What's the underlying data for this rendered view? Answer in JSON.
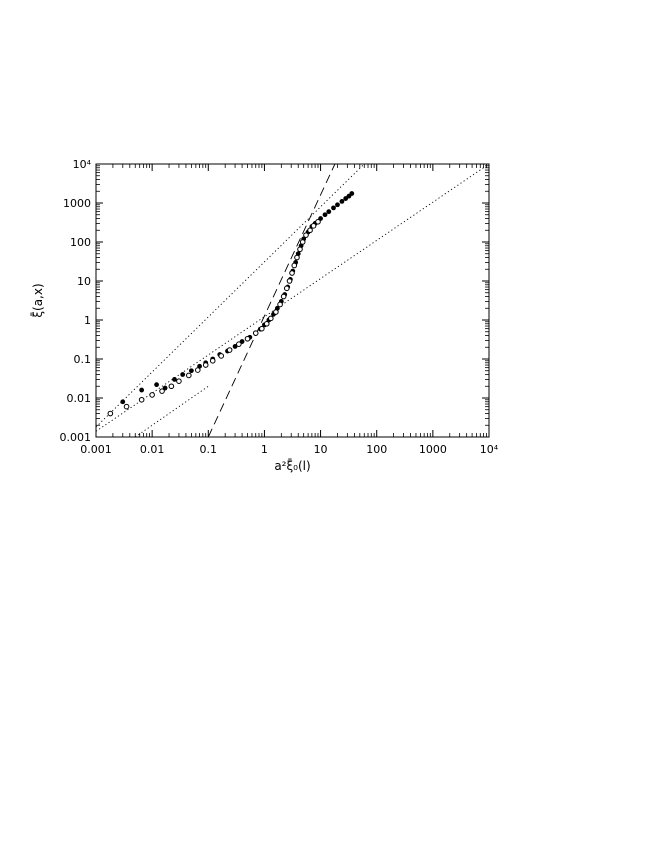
{
  "chart_data": {
    "type": "scatter",
    "title": "",
    "xlabel": "a²ξ̄₀(l)",
    "ylabel": "ξ̄(a,x)",
    "xscale": "log",
    "yscale": "log",
    "xlim": [
      0.001,
      10000
    ],
    "ylim": [
      0.001,
      10000
    ],
    "grid": false,
    "legend": "none",
    "x_ticks": [
      {
        "value": 0.001,
        "label": "0.001"
      },
      {
        "value": 0.01,
        "label": "0.01"
      },
      {
        "value": 0.1,
        "label": "0.1"
      },
      {
        "value": 1,
        "label": "1"
      },
      {
        "value": 10,
        "label": "10"
      },
      {
        "value": 100,
        "label": "100"
      },
      {
        "value": 1000,
        "label": "1000"
      },
      {
        "value": 10000,
        "label": "10⁴"
      }
    ],
    "y_ticks": [
      {
        "value": 0.001,
        "label": "0.001"
      },
      {
        "value": 0.01,
        "label": "0.01"
      },
      {
        "value": 0.1,
        "label": "0.1"
      },
      {
        "value": 1,
        "label": "1"
      },
      {
        "value": 10,
        "label": "10"
      },
      {
        "value": 100,
        "label": "100"
      },
      {
        "value": 1000,
        "label": "1000"
      },
      {
        "value": 10000,
        "label": "10⁴"
      }
    ],
    "series": [
      {
        "marker": "filled-circle",
        "color": "#000000",
        "x": [
          0.003,
          0.0065,
          0.012,
          0.017,
          0.025,
          0.035,
          0.05,
          0.07,
          0.09,
          0.12,
          0.16,
          0.22,
          0.3,
          0.4,
          0.55,
          0.7,
          0.85,
          1.0,
          1.2,
          1.45,
          1.7,
          2.0,
          2.3,
          2.6,
          2.9,
          3.2,
          3.6,
          4.0,
          4.5,
          5.0,
          6.0,
          7.0,
          8.0,
          10,
          12,
          14,
          17,
          20,
          24,
          28,
          32,
          36
        ],
        "y": [
          0.008,
          0.016,
          0.022,
          0.018,
          0.03,
          0.04,
          0.05,
          0.065,
          0.08,
          0.1,
          0.13,
          0.16,
          0.21,
          0.28,
          0.36,
          0.46,
          0.58,
          0.75,
          1.0,
          1.4,
          2.0,
          3.0,
          4.5,
          7.0,
          11,
          18,
          30,
          50,
          80,
          120,
          180,
          250,
          300,
          400,
          500,
          600,
          750,
          900,
          1100,
          1300,
          1500,
          1750
        ]
      },
      {
        "marker": "open-circle",
        "color": "#000000",
        "x": [
          0.0018,
          0.0035,
          0.0065,
          0.01,
          0.015,
          0.022,
          0.03,
          0.045,
          0.065,
          0.09,
          0.12,
          0.17,
          0.24,
          0.35,
          0.5,
          0.7,
          0.9,
          1.1,
          1.3,
          1.6,
          1.9,
          2.2,
          2.5,
          2.8,
          3.1,
          3.4,
          3.8,
          4.3,
          4.8,
          5.5,
          6.5,
          7.5,
          9.0
        ],
        "y": [
          0.004,
          0.006,
          0.009,
          0.012,
          0.015,
          0.02,
          0.027,
          0.038,
          0.052,
          0.07,
          0.09,
          0.12,
          0.17,
          0.24,
          0.33,
          0.46,
          0.6,
          0.8,
          1.1,
          1.6,
          2.5,
          4.0,
          6.5,
          10,
          16,
          25,
          40,
          65,
          100,
          150,
          200,
          260,
          330
        ]
      }
    ],
    "reference_lines": [
      {
        "style": "dashed",
        "x": [
          0.1,
          18
        ],
        "y": [
          0.001,
          10000
        ]
      },
      {
        "style": "dotted",
        "x": [
          0.001,
          60
        ],
        "y": [
          0.0018,
          10000
        ]
      },
      {
        "style": "dotted",
        "x": [
          0.001,
          10000
        ],
        "y": [
          0.0014,
          10000
        ]
      },
      {
        "style": "dotted",
        "x": [
          0.005,
          0.1
        ],
        "y": [
          0.001,
          0.02
        ]
      }
    ]
  }
}
